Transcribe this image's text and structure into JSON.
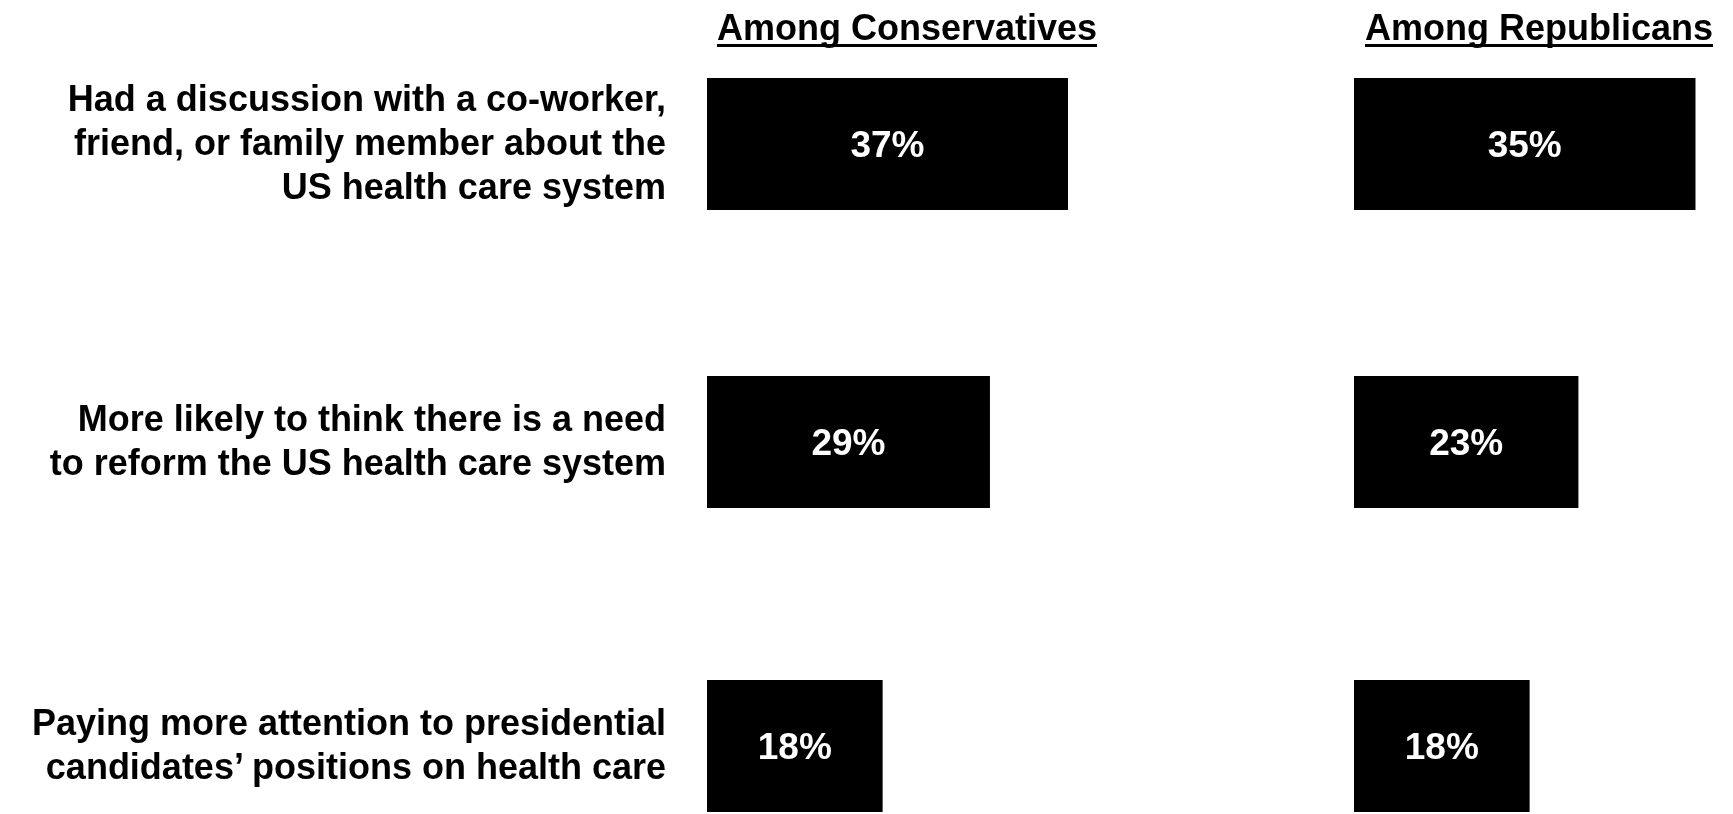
{
  "chart_data": [
    {
      "type": "bar",
      "orientation": "horizontal",
      "title": "Among Conservatives",
      "categories": [
        "Had a discussion with a co-worker, friend, or family member about the US health care system",
        "More likely to think there is a need to reform the US health care system",
        "Paying more attention to presidential candidates’ positions on health care"
      ],
      "values": [
        37,
        29,
        18
      ],
      "color": "#000000",
      "value_labels": [
        "37%",
        "29%",
        "18%"
      ]
    },
    {
      "type": "bar",
      "orientation": "horizontal",
      "title": "Among Republicans",
      "categories": [
        null,
        null,
        null
      ],
      "values": [
        35,
        23,
        18
      ],
      "color": "#000000",
      "value_labels": [
        "35%",
        "23%",
        "18%"
      ]
    }
  ]
}
